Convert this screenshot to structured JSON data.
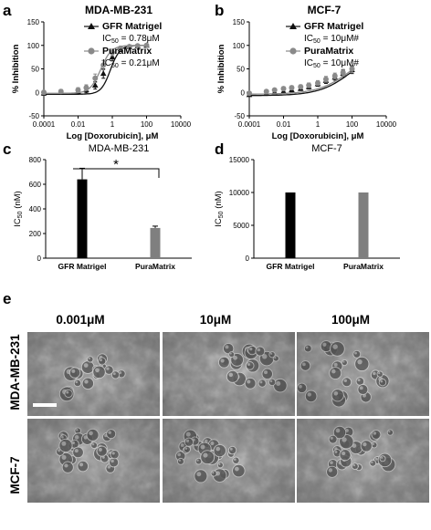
{
  "panels": {
    "a": {
      "letter": "a",
      "title": "MDA-MB-231",
      "legend": [
        {
          "name": "GFR Matrigel",
          "ic50_prefix": "IC",
          "ic50_sub": "50",
          "ic50_value": " = 0.78μM",
          "color": "#111111"
        },
        {
          "name": "PuraMatrix",
          "ic50_prefix": "IC",
          "ic50_sub": "50",
          "ic50_value": " = 0.21μM",
          "color": "#8a8a8a"
        }
      ]
    },
    "b": {
      "letter": "b",
      "title": "MCF-7",
      "legend": [
        {
          "name": "GFR Matrigel",
          "ic50_prefix": "IC",
          "ic50_sub": "50",
          "ic50_value": " = 10μM#",
          "color": "#111111"
        },
        {
          "name": "PuraMatrix",
          "ic50_prefix": "IC",
          "ic50_sub": "50",
          "ic50_value": " = 10μM#",
          "color": "#8a8a8a"
        }
      ]
    },
    "c": {
      "letter": "c",
      "title": "MDA-MB-231",
      "significance": "*"
    },
    "d": {
      "letter": "d",
      "title": "MCF-7"
    },
    "e": {
      "letter": "e",
      "columns": [
        "0.001μM",
        "10μM",
        "100μM"
      ],
      "rows": [
        "MDA-MB-231",
        "MCF-7"
      ]
    }
  },
  "chart_data": [
    {
      "panel": "a",
      "type": "line",
      "title": "MDA-MB-231",
      "xlabel": "Log [Doxorubicin], μM",
      "ylabel": "% Inhibition",
      "x_scale": "log",
      "xlim": [
        0.0001,
        10000
      ],
      "ylim": [
        -50,
        150
      ],
      "xticks": [
        0.0001,
        0.01,
        1,
        100,
        10000
      ],
      "xtick_labels": [
        "0.0001",
        "0.01",
        "1",
        "100",
        "10000"
      ],
      "yticks": [
        -50,
        0,
        50,
        100,
        150
      ],
      "ytick_labels": [
        "-50",
        "0",
        "50",
        "100",
        "150"
      ],
      "series": [
        {
          "name": "GFR Matrigel",
          "marker": "triangle",
          "color": "#111111",
          "x": [
            0.0001,
            0.001,
            0.01,
            0.03,
            0.1,
            0.3,
            1,
            3,
            10,
            30,
            100
          ],
          "y": [
            -2,
            0,
            2,
            5,
            15,
            40,
            75,
            92,
            97,
            98,
            100
          ],
          "err": [
            4,
            4,
            5,
            6,
            8,
            10,
            8,
            5,
            4,
            3,
            3
          ],
          "fit_ic50": 0.78,
          "fit_hill": 1.6
        },
        {
          "name": "PuraMatrix",
          "marker": "circle",
          "color": "#8a8a8a",
          "x": [
            0.0001,
            0.001,
            0.01,
            0.03,
            0.1,
            0.3,
            1,
            3,
            10,
            30,
            100
          ],
          "y": [
            0,
            2,
            5,
            10,
            30,
            58,
            85,
            94,
            97,
            99,
            100
          ],
          "err": [
            4,
            4,
            5,
            6,
            9,
            10,
            7,
            4,
            3,
            3,
            3
          ],
          "fit_ic50": 0.21,
          "fit_hill": 1.4
        }
      ]
    },
    {
      "panel": "b",
      "type": "line",
      "title": "MCF-7",
      "xlabel": "Log [Doxorubicin], μM",
      "ylabel": "% Inhibition",
      "x_scale": "log",
      "xlim": [
        0.0001,
        10000
      ],
      "ylim": [
        -50,
        150
      ],
      "xticks": [
        0.0001,
        0.01,
        1,
        100,
        10000
      ],
      "xtick_labels": [
        "0.0001",
        "0.01",
        "1",
        "100",
        "10000"
      ],
      "yticks": [
        -50,
        0,
        50,
        100,
        150
      ],
      "ytick_labels": [
        "-50",
        "0",
        "50",
        "100",
        "150"
      ],
      "series": [
        {
          "name": "GFR Matrigel",
          "marker": "triangle",
          "color": "#111111",
          "x": [
            0.0001,
            0.001,
            0.003,
            0.01,
            0.03,
            0.1,
            0.3,
            1,
            3,
            10,
            30,
            100
          ],
          "y": [
            -5,
            -2,
            0,
            2,
            5,
            8,
            12,
            18,
            25,
            32,
            40,
            48
          ],
          "err": [
            3,
            3,
            3,
            4,
            4,
            4,
            5,
            5,
            6,
            6,
            7,
            8
          ],
          "fit_ic50": 120,
          "fit_hill": 0.45
        },
        {
          "name": "PuraMatrix",
          "marker": "circle",
          "color": "#8a8a8a",
          "x": [
            0.0001,
            0.001,
            0.003,
            0.01,
            0.03,
            0.1,
            0.3,
            1,
            3,
            10,
            30,
            100
          ],
          "y": [
            -2,
            2,
            5,
            8,
            10,
            12,
            15,
            20,
            28,
            35,
            42,
            50
          ],
          "err": [
            3,
            3,
            3,
            4,
            4,
            4,
            5,
            5,
            6,
            6,
            7,
            8
          ],
          "fit_ic50": 100,
          "fit_hill": 0.45
        }
      ]
    },
    {
      "panel": "c",
      "type": "bar",
      "title": "MDA-MB-231",
      "ylabel_main": "IC",
      "ylabel_sub": "50",
      "ylabel_unit": " (nM)",
      "categories": [
        "GFR Matrigel",
        "PuraMatrix"
      ],
      "values": [
        640,
        245
      ],
      "errors": [
        90,
        15
      ],
      "colors": [
        "#000000",
        "#7f7f7f"
      ],
      "ylim": [
        0,
        800
      ],
      "yticks": [
        0,
        200,
        400,
        600,
        800
      ],
      "ytick_labels": [
        "0",
        "200",
        "400",
        "600",
        "800"
      ]
    },
    {
      "panel": "d",
      "type": "bar",
      "title": "MCF-7",
      "ylabel_main": "IC",
      "ylabel_sub": "50",
      "ylabel_unit": " (nM)",
      "categories": [
        "GFR Matrigel",
        "PuraMatrix"
      ],
      "values": [
        10000,
        10000
      ],
      "colors": [
        "#000000",
        "#7f7f7f"
      ],
      "ylim": [
        0,
        15000
      ],
      "yticks": [
        0,
        5000,
        10000,
        15000
      ],
      "ytick_labels": [
        "0",
        "5000",
        "10000",
        "15000"
      ]
    }
  ]
}
